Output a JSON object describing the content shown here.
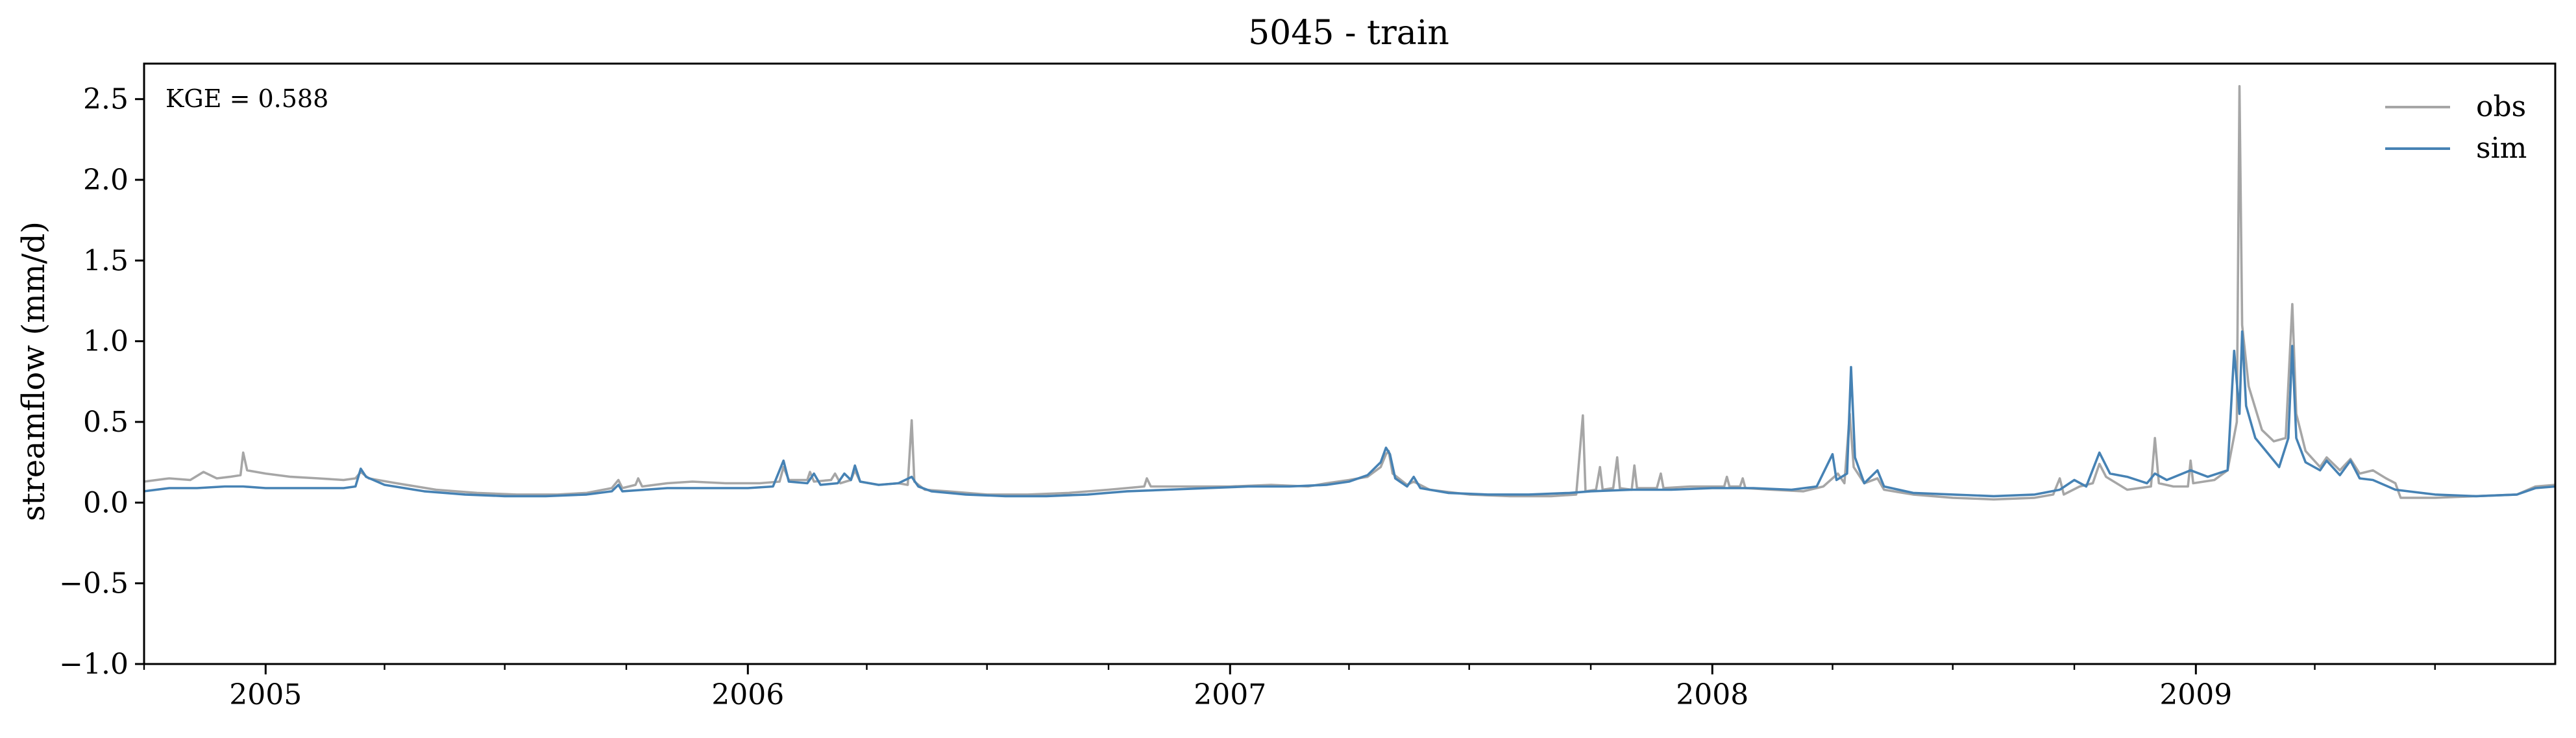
{
  "chart_data": {
    "type": "line",
    "title": "5045 - train",
    "xlabel": "",
    "ylabel": "streamflow (mm/d)",
    "annotation": "KGE = 0.588",
    "xlim": [
      "2004-10-01",
      "2009-09-30"
    ],
    "ylim": [
      -1.0,
      2.72
    ],
    "yticks": [
      -1.0,
      -0.5,
      0.0,
      0.5,
      1.0,
      1.5,
      2.0,
      2.5
    ],
    "ytick_labels": [
      "−1.0",
      "−0.5",
      "0.0",
      "0.5",
      "1.0",
      "1.5",
      "2.0",
      "2.5"
    ],
    "xticks": [
      "2005-01-01",
      "2006-01-01",
      "2007-01-01",
      "2008-01-01",
      "2009-01-01"
    ],
    "xtick_labels": [
      "2005",
      "2006",
      "2007",
      "2008",
      "2009"
    ],
    "grid": false,
    "legend_position": "top-right",
    "series": [
      {
        "name": "obs",
        "color": "#a6a6a6",
        "points": [
          [
            "2004-10-01",
            0.13
          ],
          [
            "2004-10-20",
            0.15
          ],
          [
            "2004-11-05",
            0.14
          ],
          [
            "2004-11-15",
            0.19
          ],
          [
            "2004-11-25",
            0.15
          ],
          [
            "2004-12-05",
            0.16
          ],
          [
            "2004-12-13",
            0.17
          ],
          [
            "2004-12-15",
            0.31
          ],
          [
            "2004-12-18",
            0.2
          ],
          [
            "2005-01-01",
            0.18
          ],
          [
            "2005-01-20",
            0.16
          ],
          [
            "2005-02-10",
            0.15
          ],
          [
            "2005-03-01",
            0.14
          ],
          [
            "2005-03-10",
            0.15
          ],
          [
            "2005-03-14",
            0.19
          ],
          [
            "2005-03-20",
            0.15
          ],
          [
            "2005-04-10",
            0.12
          ],
          [
            "2005-05-10",
            0.08
          ],
          [
            "2005-06-10",
            0.06
          ],
          [
            "2005-07-10",
            0.05
          ],
          [
            "2005-08-10",
            0.05
          ],
          [
            "2005-09-01",
            0.06
          ],
          [
            "2005-09-20",
            0.09
          ],
          [
            "2005-09-25",
            0.14
          ],
          [
            "2005-09-28",
            0.09
          ],
          [
            "2005-10-08",
            0.11
          ],
          [
            "2005-10-10",
            0.15
          ],
          [
            "2005-10-13",
            0.1
          ],
          [
            "2005-11-01",
            0.12
          ],
          [
            "2005-11-20",
            0.13
          ],
          [
            "2005-12-15",
            0.12
          ],
          [
            "2006-01-10",
            0.12
          ],
          [
            "2006-01-25",
            0.13
          ],
          [
            "2006-01-28",
            0.22
          ],
          [
            "2006-02-01",
            0.14
          ],
          [
            "2006-02-15",
            0.14
          ],
          [
            "2006-02-17",
            0.19
          ],
          [
            "2006-02-20",
            0.13
          ],
          [
            "2006-03-05",
            0.14
          ],
          [
            "2006-03-08",
            0.18
          ],
          [
            "2006-03-12",
            0.12
          ],
          [
            "2006-03-20",
            0.14
          ],
          [
            "2006-03-23",
            0.2
          ],
          [
            "2006-03-27",
            0.13
          ],
          [
            "2006-04-10",
            0.11
          ],
          [
            "2006-04-25",
            0.12
          ],
          [
            "2006-05-02",
            0.11
          ],
          [
            "2006-05-05",
            0.51
          ],
          [
            "2006-05-07",
            0.13
          ],
          [
            "2006-05-15",
            0.08
          ],
          [
            "2006-06-01",
            0.07
          ],
          [
            "2006-07-01",
            0.05
          ],
          [
            "2006-08-01",
            0.05
          ],
          [
            "2006-09-01",
            0.06
          ],
          [
            "2006-10-01",
            0.08
          ],
          [
            "2006-10-28",
            0.1
          ],
          [
            "2006-10-30",
            0.15
          ],
          [
            "2006-11-02",
            0.1
          ],
          [
            "2006-12-01",
            0.1
          ],
          [
            "2007-01-01",
            0.1
          ],
          [
            "2007-02-01",
            0.11
          ],
          [
            "2007-03-01",
            0.1
          ],
          [
            "2007-03-15",
            0.12
          ],
          [
            "2007-04-01",
            0.14
          ],
          [
            "2007-04-15",
            0.16
          ],
          [
            "2007-04-25",
            0.22
          ],
          [
            "2007-04-29",
            0.3
          ],
          [
            "2007-05-01",
            0.32
          ],
          [
            "2007-05-04",
            0.18
          ],
          [
            "2007-05-15",
            0.11
          ],
          [
            "2007-05-20",
            0.13
          ],
          [
            "2007-06-01",
            0.08
          ],
          [
            "2007-07-01",
            0.05
          ],
          [
            "2007-08-01",
            0.04
          ],
          [
            "2007-09-01",
            0.04
          ],
          [
            "2007-09-20",
            0.05
          ],
          [
            "2007-09-25",
            0.54
          ],
          [
            "2007-09-27",
            0.07
          ],
          [
            "2007-10-05",
            0.08
          ],
          [
            "2007-10-08",
            0.22
          ],
          [
            "2007-10-10",
            0.08
          ],
          [
            "2007-10-18",
            0.09
          ],
          [
            "2007-10-21",
            0.28
          ],
          [
            "2007-10-23",
            0.09
          ],
          [
            "2007-11-01",
            0.08
          ],
          [
            "2007-11-03",
            0.23
          ],
          [
            "2007-11-05",
            0.09
          ],
          [
            "2007-11-20",
            0.09
          ],
          [
            "2007-11-23",
            0.18
          ],
          [
            "2007-11-25",
            0.09
          ],
          [
            "2007-12-15",
            0.1
          ],
          [
            "2008-01-10",
            0.1
          ],
          [
            "2008-01-12",
            0.16
          ],
          [
            "2008-01-14",
            0.1
          ],
          [
            "2008-01-22",
            0.1
          ],
          [
            "2008-01-24",
            0.15
          ],
          [
            "2008-01-26",
            0.09
          ],
          [
            "2008-02-15",
            0.08
          ],
          [
            "2008-03-10",
            0.07
          ],
          [
            "2008-03-25",
            0.1
          ],
          [
            "2008-04-05",
            0.18
          ],
          [
            "2008-04-10",
            0.12
          ],
          [
            "2008-04-14",
            0.55
          ],
          [
            "2008-04-17",
            0.22
          ],
          [
            "2008-04-25",
            0.12
          ],
          [
            "2008-05-05",
            0.15
          ],
          [
            "2008-05-10",
            0.08
          ],
          [
            "2008-06-01",
            0.05
          ],
          [
            "2008-07-01",
            0.03
          ],
          [
            "2008-08-01",
            0.02
          ],
          [
            "2008-09-01",
            0.03
          ],
          [
            "2008-09-15",
            0.05
          ],
          [
            "2008-09-20",
            0.15
          ],
          [
            "2008-09-23",
            0.05
          ],
          [
            "2008-10-05",
            0.1
          ],
          [
            "2008-10-15",
            0.12
          ],
          [
            "2008-10-20",
            0.24
          ],
          [
            "2008-10-25",
            0.16
          ],
          [
            "2008-11-10",
            0.08
          ],
          [
            "2008-11-28",
            0.1
          ],
          [
            "2008-12-01",
            0.4
          ],
          [
            "2008-12-04",
            0.12
          ],
          [
            "2008-12-15",
            0.1
          ],
          [
            "2008-12-26",
            0.1
          ],
          [
            "2008-12-28",
            0.26
          ],
          [
            "2008-12-30",
            0.12
          ],
          [
            "2009-01-15",
            0.14
          ],
          [
            "2009-01-25",
            0.2
          ],
          [
            "2009-02-01",
            0.5
          ],
          [
            "2009-02-03",
            2.58
          ],
          [
            "2009-02-05",
            1.1
          ],
          [
            "2009-02-10",
            0.72
          ],
          [
            "2009-02-20",
            0.45
          ],
          [
            "2009-03-01",
            0.38
          ],
          [
            "2009-03-10",
            0.4
          ],
          [
            "2009-03-15",
            1.23
          ],
          [
            "2009-03-18",
            0.55
          ],
          [
            "2009-03-25",
            0.32
          ],
          [
            "2009-04-05",
            0.22
          ],
          [
            "2009-04-10",
            0.28
          ],
          [
            "2009-04-20",
            0.2
          ],
          [
            "2009-04-28",
            0.27
          ],
          [
            "2009-05-05",
            0.18
          ],
          [
            "2009-05-15",
            0.2
          ],
          [
            "2009-05-25",
            0.15
          ],
          [
            "2009-06-01",
            0.12
          ],
          [
            "2009-06-05",
            0.03
          ],
          [
            "2009-07-01",
            0.03
          ],
          [
            "2009-08-01",
            0.04
          ],
          [
            "2009-09-01",
            0.05
          ],
          [
            "2009-09-15",
            0.1
          ],
          [
            "2009-09-30",
            0.11
          ]
        ]
      },
      {
        "name": "sim",
        "color": "#4682b4",
        "points": [
          [
            "2004-10-01",
            0.07
          ],
          [
            "2004-10-20",
            0.09
          ],
          [
            "2004-11-10",
            0.09
          ],
          [
            "2004-12-01",
            0.1
          ],
          [
            "2004-12-15",
            0.1
          ],
          [
            "2005-01-01",
            0.09
          ],
          [
            "2005-02-01",
            0.09
          ],
          [
            "2005-03-01",
            0.09
          ],
          [
            "2005-03-10",
            0.1
          ],
          [
            "2005-03-14",
            0.21
          ],
          [
            "2005-03-18",
            0.16
          ],
          [
            "2005-04-01",
            0.11
          ],
          [
            "2005-05-01",
            0.07
          ],
          [
            "2005-06-01",
            0.05
          ],
          [
            "2005-07-01",
            0.04
          ],
          [
            "2005-08-01",
            0.04
          ],
          [
            "2005-09-01",
            0.05
          ],
          [
            "2005-09-20",
            0.07
          ],
          [
            "2005-09-25",
            0.11
          ],
          [
            "2005-09-28",
            0.07
          ],
          [
            "2005-10-15",
            0.08
          ],
          [
            "2005-11-01",
            0.09
          ],
          [
            "2005-12-01",
            0.09
          ],
          [
            "2006-01-01",
            0.09
          ],
          [
            "2006-01-20",
            0.1
          ],
          [
            "2006-01-28",
            0.26
          ],
          [
            "2006-02-01",
            0.13
          ],
          [
            "2006-02-15",
            0.12
          ],
          [
            "2006-02-20",
            0.18
          ],
          [
            "2006-02-25",
            0.11
          ],
          [
            "2006-03-10",
            0.12
          ],
          [
            "2006-03-15",
            0.18
          ],
          [
            "2006-03-20",
            0.14
          ],
          [
            "2006-03-23",
            0.23
          ],
          [
            "2006-03-27",
            0.13
          ],
          [
            "2006-04-10",
            0.11
          ],
          [
            "2006-04-25",
            0.12
          ],
          [
            "2006-05-05",
            0.16
          ],
          [
            "2006-05-10",
            0.1
          ],
          [
            "2006-05-20",
            0.07
          ],
          [
            "2006-06-15",
            0.05
          ],
          [
            "2006-07-15",
            0.04
          ],
          [
            "2006-08-15",
            0.04
          ],
          [
            "2006-09-15",
            0.05
          ],
          [
            "2006-10-15",
            0.07
          ],
          [
            "2006-11-15",
            0.08
          ],
          [
            "2006-12-15",
            0.09
          ],
          [
            "2007-01-15",
            0.1
          ],
          [
            "2007-02-15",
            0.1
          ],
          [
            "2007-03-15",
            0.11
          ],
          [
            "2007-04-01",
            0.13
          ],
          [
            "2007-04-15",
            0.17
          ],
          [
            "2007-04-25",
            0.25
          ],
          [
            "2007-04-29",
            0.34
          ],
          [
            "2007-05-02",
            0.3
          ],
          [
            "2007-05-06",
            0.15
          ],
          [
            "2007-05-15",
            0.1
          ],
          [
            "2007-05-20",
            0.16
          ],
          [
            "2007-05-25",
            0.09
          ],
          [
            "2007-06-15",
            0.06
          ],
          [
            "2007-07-15",
            0.05
          ],
          [
            "2007-08-15",
            0.05
          ],
          [
            "2007-09-15",
            0.06
          ],
          [
            "2007-10-01",
            0.07
          ],
          [
            "2007-11-01",
            0.08
          ],
          [
            "2007-12-01",
            0.08
          ],
          [
            "2008-01-01",
            0.09
          ],
          [
            "2008-02-01",
            0.09
          ],
          [
            "2008-03-01",
            0.08
          ],
          [
            "2008-03-20",
            0.1
          ],
          [
            "2008-04-01",
            0.3
          ],
          [
            "2008-04-04",
            0.14
          ],
          [
            "2008-04-12",
            0.18
          ],
          [
            "2008-04-15",
            0.84
          ],
          [
            "2008-04-18",
            0.28
          ],
          [
            "2008-04-25",
            0.12
          ],
          [
            "2008-05-05",
            0.2
          ],
          [
            "2008-05-10",
            0.1
          ],
          [
            "2008-06-01",
            0.06
          ],
          [
            "2008-07-01",
            0.05
          ],
          [
            "2008-08-01",
            0.04
          ],
          [
            "2008-09-01",
            0.05
          ],
          [
            "2008-09-20",
            0.08
          ],
          [
            "2008-10-01",
            0.14
          ],
          [
            "2008-10-10",
            0.1
          ],
          [
            "2008-10-20",
            0.31
          ],
          [
            "2008-10-28",
            0.18
          ],
          [
            "2008-11-10",
            0.16
          ],
          [
            "2008-11-25",
            0.12
          ],
          [
            "2008-12-01",
            0.18
          ],
          [
            "2008-12-10",
            0.14
          ],
          [
            "2008-12-28",
            0.2
          ],
          [
            "2009-01-10",
            0.16
          ],
          [
            "2009-01-25",
            0.2
          ],
          [
            "2009-01-30",
            0.94
          ],
          [
            "2009-02-03",
            0.55
          ],
          [
            "2009-02-05",
            1.06
          ],
          [
            "2009-02-08",
            0.6
          ],
          [
            "2009-02-15",
            0.4
          ],
          [
            "2009-02-25",
            0.3
          ],
          [
            "2009-03-05",
            0.22
          ],
          [
            "2009-03-12",
            0.4
          ],
          [
            "2009-03-15",
            0.97
          ],
          [
            "2009-03-18",
            0.4
          ],
          [
            "2009-03-25",
            0.25
          ],
          [
            "2009-04-05",
            0.2
          ],
          [
            "2009-04-10",
            0.26
          ],
          [
            "2009-04-20",
            0.17
          ],
          [
            "2009-04-28",
            0.26
          ],
          [
            "2009-05-05",
            0.15
          ],
          [
            "2009-05-15",
            0.14
          ],
          [
            "2009-06-01",
            0.08
          ],
          [
            "2009-07-01",
            0.05
          ],
          [
            "2009-08-01",
            0.04
          ],
          [
            "2009-09-01",
            0.05
          ],
          [
            "2009-09-15",
            0.09
          ],
          [
            "2009-09-30",
            0.1
          ]
        ]
      }
    ]
  }
}
